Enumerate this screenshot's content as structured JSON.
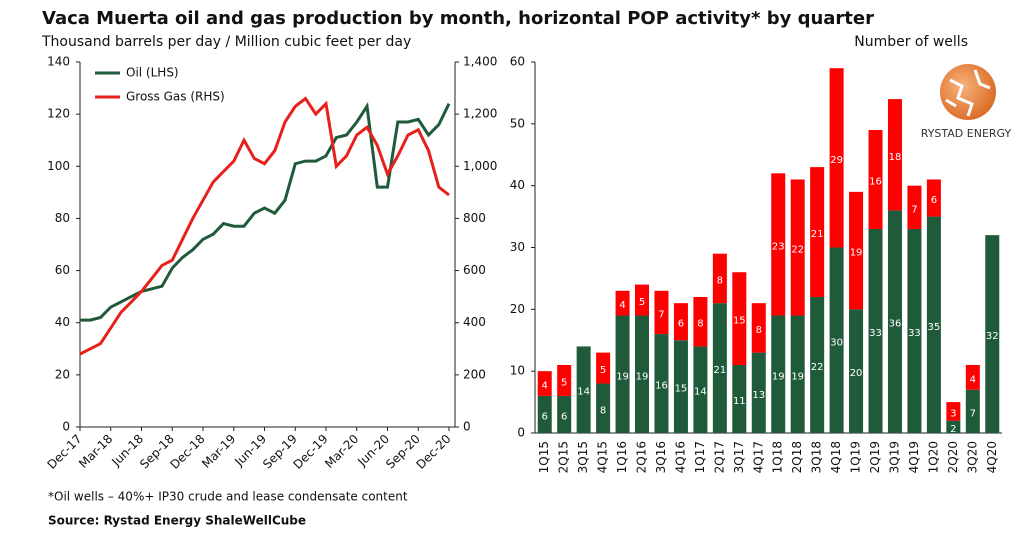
{
  "title": "Vaca Muerta oil and gas production by month, horizontal POP activity* by quarter",
  "logo_text": "RYSTAD ENERGY",
  "footnote": "*Oil wells – 40%+ IP30 crude and lease condensate content",
  "source": "Source: Rystad Energy ShaleWellCube",
  "chart_data": [
    {
      "type": "line",
      "ylabel": "Thousand barrels per day / Million cubic feet per day",
      "categories": [
        "Dec-17",
        null,
        null,
        "Mar-18",
        null,
        null,
        "Jun-18",
        null,
        null,
        "Sep-18",
        null,
        null,
        "Dec-18",
        null,
        null,
        "Mar-19",
        null,
        null,
        "Jun-19",
        null,
        null,
        "Sep-19",
        null,
        null,
        "Dec-19",
        null,
        null,
        "Mar-20",
        null,
        null,
        "Jun-20",
        null,
        null,
        "Sep-20",
        null,
        null,
        "Dec-20"
      ],
      "series": [
        {
          "name": "Oil (LHS)",
          "color": "#1f5a3a",
          "values": [
            41,
            41,
            42,
            46,
            48,
            50,
            52,
            53,
            54,
            61,
            65,
            68,
            72,
            74,
            78,
            77,
            77,
            82,
            84,
            82,
            87,
            101,
            102,
            102,
            104,
            111,
            112,
            117,
            123,
            92,
            92,
            117,
            117,
            118,
            112,
            116,
            124
          ]
        },
        {
          "name": "Gross Gas (RHS)",
          "color": "#e8201c",
          "axis": "y2",
          "values": [
            280,
            300,
            320,
            380,
            440,
            480,
            520,
            570,
            620,
            640,
            720,
            800,
            870,
            940,
            980,
            1020,
            1100,
            1030,
            1010,
            1060,
            1170,
            1230,
            1260,
            1200,
            1240,
            1000,
            1040,
            1120,
            1150,
            1080,
            970,
            1040,
            1120,
            1140,
            1060,
            920,
            890
          ]
        }
      ],
      "ylim": [
        0,
        140
      ],
      "yticks": [
        0,
        20,
        40,
        60,
        80,
        100,
        120,
        140
      ],
      "y2lim": [
        0,
        1400
      ],
      "y2ticks": [
        0,
        200,
        400,
        600,
        800,
        {
          "value": 1000,
          "label": "1,000"
        },
        {
          "value": 1200,
          "label": "1,200"
        },
        {
          "value": 1400,
          "label": "1,400"
        }
      ],
      "legend": "upper left",
      "grid": false
    },
    {
      "type": "bar",
      "stacked": true,
      "ylabel": "Number of wells",
      "categories": [
        "1Q15",
        "2Q15",
        "3Q15",
        "4Q15",
        "1Q16",
        "2Q16",
        "3Q16",
        "4Q16",
        "1Q17",
        "2Q17",
        "3Q17",
        "4Q17",
        "1Q18",
        "2Q18",
        "3Q18",
        "4Q18",
        "1Q19",
        "2Q19",
        "3Q19",
        "4Q19",
        "1Q20",
        "2Q20",
        "3Q20",
        "4Q20"
      ],
      "series": [
        {
          "color": "#1f5a3a",
          "values": [
            6,
            6,
            14,
            8,
            19,
            19,
            16,
            15,
            14,
            21,
            11,
            13,
            19,
            19,
            22,
            30,
            20,
            33,
            36,
            33,
            35,
            2,
            7,
            32
          ]
        },
        {
          "color": "#ff0000",
          "values": [
            4,
            5,
            null,
            5,
            4,
            5,
            7,
            6,
            8,
            8,
            15,
            8,
            23,
            22,
            21,
            29,
            19,
            16,
            18,
            7,
            6,
            3,
            4,
            null
          ]
        }
      ],
      "ylim": [
        0,
        60
      ],
      "yticks": [
        0,
        10,
        20,
        30,
        40,
        50,
        60
      ],
      "grid": false
    }
  ]
}
